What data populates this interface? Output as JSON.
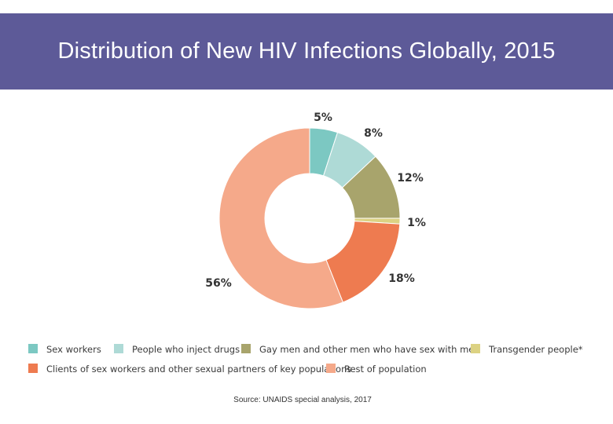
{
  "header": {
    "title": "Distribution of New HIV Infections Globally, 2015"
  },
  "chart_data": {
    "type": "pie",
    "donut": true,
    "title": "",
    "legend_position": "bottom",
    "slices": [
      {
        "name": "Sex workers",
        "value": 5,
        "label": "5%",
        "color": "#7cc8c2"
      },
      {
        "name": "People who inject drugs",
        "value": 8,
        "label": "8%",
        "color": "#aedad6"
      },
      {
        "name": "Gay men and other men who have sex with men",
        "value": 12,
        "label": "12%",
        "color": "#a8a46c"
      },
      {
        "name": "Transgender people*",
        "value": 1,
        "label": "1%",
        "color": "#dcd283"
      },
      {
        "name": "Clients of sex workers and other sexual partners of key populations",
        "value": 18,
        "label": "18%",
        "color": "#ee7b50"
      },
      {
        "name": "Rest of population",
        "value": 56,
        "label": "56%",
        "color": "#f5a98a"
      }
    ]
  },
  "footer": {
    "source": "Source: UNAIDS special analysis, 2017"
  }
}
